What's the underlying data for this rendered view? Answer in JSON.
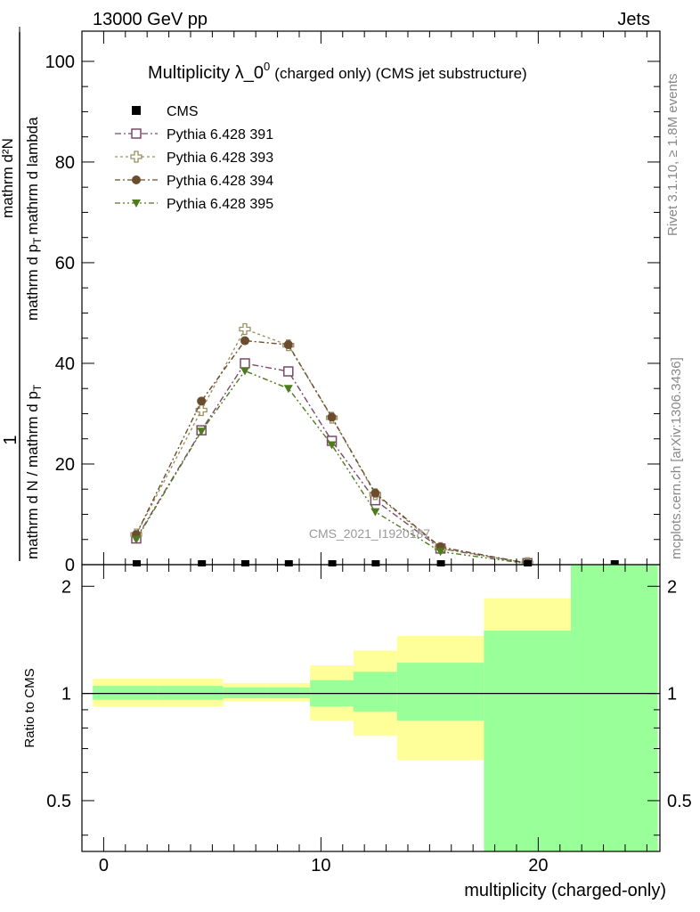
{
  "header": {
    "left": "13000 GeV pp",
    "right": "Jets"
  },
  "side_text": {
    "rivet": "Rivet 3.1.10, ≥ 1.8M events",
    "mcplots": "mcplots.cern.ch [arXiv:1306.3436]"
  },
  "chart_data": [
    {
      "type": "line",
      "title_main": "Multiplicity λ_0",
      "title_sup": "0",
      "title_rest": "(charged only) (CMS jet substructure)",
      "ylabel_num": "mathrm d²N",
      "ylabel_den1": "mathrm d p",
      "ylabel_den1_sub": "T",
      "ylabel_den2": "mathrm d lambda",
      "ylabel_one": "1",
      "ylabel_lower": "mathrm d N / mathrm d p",
      "ylabel_lower_sub": "T",
      "ylabel_lower2": "mathrm d p",
      "ylabel_lower2_sub": "T",
      "ylabel_lower3": "mathrm d lambda",
      "watermark": "CMS_2021_I1920187",
      "xlim": [
        -1,
        25.6
      ],
      "ylim": [
        0,
        106
      ],
      "yticks": [
        0,
        20,
        40,
        60,
        80,
        100
      ],
      "legend": [
        "CMS",
        "Pythia 6.428 391",
        "Pythia 6.428 393",
        "Pythia 6.428 394",
        "Pythia 6.428 395"
      ],
      "data": {
        "name": "CMS",
        "x": [
          1.5,
          4.5,
          6.5,
          8.5,
          10.5,
          12.5,
          15.5,
          19.5,
          23.5
        ],
        "y": [
          0,
          0,
          0,
          0,
          0,
          0,
          0,
          0,
          0
        ]
      },
      "series": [
        {
          "name": "Pythia 6.428 391",
          "color": "#7a4a6a",
          "marker": "open-square",
          "x": [
            1.5,
            4.5,
            6.5,
            8.5,
            10.5,
            12.5,
            15.5,
            19.5
          ],
          "y": [
            5.2,
            26.7,
            40.0,
            38.4,
            24.6,
            12.8,
            3.2,
            0.3
          ]
        },
        {
          "name": "Pythia 6.428 393",
          "color": "#9a9060",
          "marker": "open-cross",
          "x": [
            1.5,
            4.5,
            6.5,
            8.5,
            10.5,
            12.5,
            15.5,
            19.5
          ],
          "y": [
            6.0,
            30.7,
            46.8,
            43.6,
            29.2,
            14.0,
            3.3,
            0.3
          ]
        },
        {
          "name": "Pythia 6.428 394",
          "color": "#6b4c2f",
          "marker": "filled-circle",
          "x": [
            1.5,
            4.5,
            6.5,
            8.5,
            10.5,
            12.5,
            15.5,
            19.5
          ],
          "y": [
            6.0,
            32.5,
            44.5,
            43.7,
            29.3,
            14.2,
            3.5,
            0.3
          ]
        },
        {
          "name": "Pythia 6.428 395",
          "color": "#4f7a1e",
          "marker": "filled-triangle-down",
          "x": [
            1.5,
            4.5,
            6.5,
            8.5,
            10.5,
            12.5,
            15.5,
            19.5
          ],
          "y": [
            5.0,
            26.5,
            38.5,
            35.0,
            23.8,
            10.5,
            2.6,
            0.2
          ]
        }
      ]
    },
    {
      "type": "ratio-band",
      "ylabel": "Ratio to CMS",
      "xlabel": "multiplicity (charged-only)",
      "xlim": [
        -1,
        25.6
      ],
      "ylim": [
        0.36,
        2.3
      ],
      "yticks": [
        0.5,
        1,
        2
      ],
      "ytick_labels": [
        "0.5",
        "1",
        "2"
      ],
      "xticks": [
        0,
        10,
        20
      ],
      "xtick_labels": [
        "0",
        "10",
        "20"
      ],
      "bins": [
        {
          "x0": -0.5,
          "x1": 2.5,
          "stat_lo": 0.96,
          "stat_hi": 1.05,
          "tot_lo": 0.92,
          "tot_hi": 1.1
        },
        {
          "x0": 2.5,
          "x1": 5.5,
          "stat_lo": 0.96,
          "stat_hi": 1.05,
          "tot_lo": 0.92,
          "tot_hi": 1.1
        },
        {
          "x0": 5.5,
          "x1": 7.5,
          "stat_lo": 0.97,
          "stat_hi": 1.04,
          "tot_lo": 0.95,
          "tot_hi": 1.07
        },
        {
          "x0": 7.5,
          "x1": 9.5,
          "stat_lo": 0.97,
          "stat_hi": 1.04,
          "tot_lo": 0.95,
          "tot_hi": 1.07
        },
        {
          "x0": 9.5,
          "x1": 11.5,
          "stat_lo": 0.92,
          "stat_hi": 1.09,
          "tot_lo": 0.84,
          "tot_hi": 1.2
        },
        {
          "x0": 11.5,
          "x1": 13.5,
          "stat_lo": 0.89,
          "stat_hi": 1.15,
          "tot_lo": 0.76,
          "tot_hi": 1.32
        },
        {
          "x0": 13.5,
          "x1": 17.5,
          "stat_lo": 0.84,
          "stat_hi": 1.22,
          "tot_lo": 0.65,
          "tot_hi": 1.45
        },
        {
          "x0": 17.5,
          "x1": 21.5,
          "stat_lo": 0.36,
          "stat_hi": 1.5,
          "tot_lo": 0.36,
          "tot_hi": 1.85
        },
        {
          "x0": 21.5,
          "x1": 25.5,
          "stat_lo": 0.36,
          "stat_hi": 2.3,
          "tot_lo": 0.36,
          "tot_hi": 2.3
        }
      ],
      "colors": {
        "stat": "#99ff99",
        "total": "#ffff99"
      }
    }
  ]
}
